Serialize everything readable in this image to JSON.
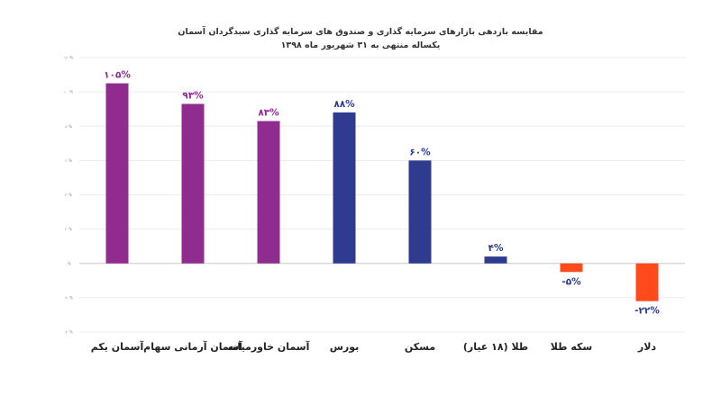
{
  "chart_data": {
    "type": "bar",
    "title": "مقایسه بازدهی بازارهای سرمایه گذاری و صندوق های سرمایه گذاری سبدگردان آسمان",
    "subtitle": "یکساله منتهی به ۳۱ شهریور ماه ۱۳۹۸",
    "categories": [
      "آسمان یکم",
      "آسمان آرمانی سهام",
      "آسمان خاورمیانه",
      "بورس",
      "مسکن",
      "طلا (۱۸ عیار)",
      "سکه طلا",
      "دلار"
    ],
    "values": [
      105,
      93,
      83,
      88,
      60,
      4,
      -5,
      -22
    ],
    "data_labels": [
      "۱۰۵%",
      "۹۳%",
      "۸۳%",
      "۸۸%",
      "۶۰%",
      "۴%",
      "-۵%",
      "-۲۲%"
    ],
    "bar_colors": [
      "#902c8f",
      "#902c8f",
      "#902c8f",
      "#2e3b8e",
      "#2e3b8e",
      "#2e3b8e",
      "#ff4a1c",
      "#ff4a1c"
    ],
    "label_colors": [
      "#902c8f",
      "#902c8f",
      "#902c8f",
      "#2e3b8e",
      "#2e3b8e",
      "#2e3b8e",
      "#2e3b8e",
      "#2e3b8e"
    ],
    "ylim": [
      -40,
      120
    ],
    "yticks": [
      -40,
      -20,
      0,
      20,
      40,
      60,
      80,
      100,
      120
    ],
    "ytick_labels": [
      "-۴۰%",
      "-۲۰%",
      "۰%",
      "۲۰%",
      "۴۰%",
      "۶۰%",
      "۸۰%",
      "۱۰۰%",
      "۱۲۰%"
    ],
    "grid": true,
    "legend": "none"
  }
}
